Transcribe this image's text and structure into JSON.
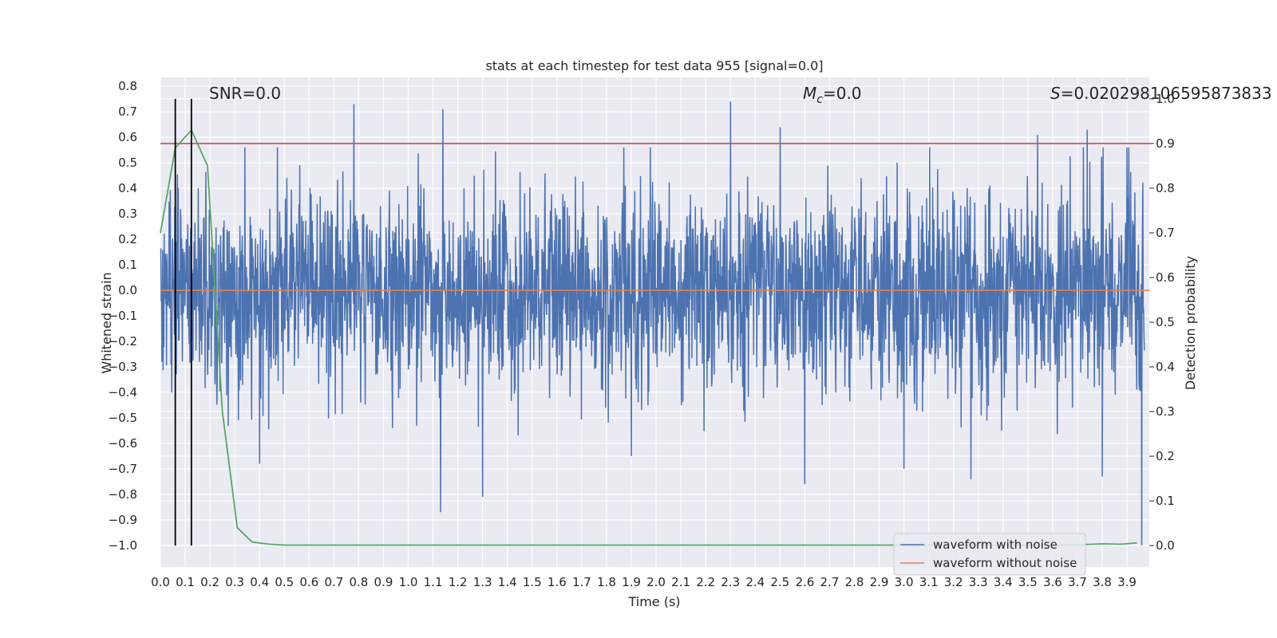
{
  "chart_data": {
    "type": "line",
    "title": "stats at each timestep for test data 955 [signal=0.0]",
    "xlabel": "Time (s)",
    "ylabel": "Whitened strain",
    "y2label": "Detection probability",
    "xlim": [
      0.0,
      3.99
    ],
    "ylim": [
      -1.085,
      0.835
    ],
    "y2lim": [
      -0.048,
      1.048
    ],
    "x_ticks": [
      0.0,
      0.1,
      0.2,
      0.3,
      0.4,
      0.5,
      0.6,
      0.7,
      0.8,
      0.9,
      1.0,
      1.1,
      1.2,
      1.3,
      1.4,
      1.5,
      1.6,
      1.7,
      1.8,
      1.9,
      2.0,
      2.1,
      2.2,
      2.3,
      2.4,
      2.5,
      2.6,
      2.7,
      2.8,
      2.9,
      3.0,
      3.1,
      3.2,
      3.3,
      3.4,
      3.5,
      3.6,
      3.7,
      3.8,
      3.9
    ],
    "x_tick_labels": [
      "0.0",
      "0.1",
      "0.2",
      "0.3",
      "0.4",
      "0.5",
      "0.6",
      "0.7",
      "0.8",
      "0.9",
      "1.0",
      "1.1",
      "1.2",
      "1.3",
      "1.4",
      "1.5",
      "1.6",
      "1.7",
      "1.8",
      "1.9",
      "2.0",
      "2.1",
      "2.2",
      "2.3",
      "2.4",
      "2.5",
      "2.6",
      "2.7",
      "2.8",
      "2.9",
      "3.0",
      "3.1",
      "3.2",
      "3.3",
      "3.4",
      "3.5",
      "3.6",
      "3.7",
      "3.8",
      "3.9"
    ],
    "y_ticks": [
      0.8,
      0.7,
      0.6,
      0.5,
      0.4,
      0.3,
      0.2,
      0.1,
      0.0,
      -0.1,
      -0.2,
      -0.3,
      -0.4,
      -0.5,
      -0.6,
      -0.7,
      -0.8,
      -0.9,
      -1.0
    ],
    "y_tick_labels": [
      "0.8",
      "0.7",
      "0.6",
      "0.5",
      "0.4",
      "0.3",
      "0.2",
      "0.1",
      "0.0",
      "−0.1",
      "−0.2",
      "−0.3",
      "−0.4",
      "−0.5",
      "−0.6",
      "−0.7",
      "−0.8",
      "−0.9",
      "−1.0"
    ],
    "y2_ticks": [
      1.0,
      0.9,
      0.8,
      0.7,
      0.6,
      0.5,
      0.4,
      0.3,
      0.2,
      0.1,
      0.0
    ],
    "y2_tick_labels": [
      "1.0",
      "0.9",
      "0.8",
      "0.7",
      "0.6",
      "0.5",
      "0.4",
      "0.3",
      "0.2",
      "0.1",
      "0.0"
    ],
    "grid": true,
    "background": "#eaeaf2",
    "annotations": {
      "snr": "SNR=0.0",
      "mc_symbol": "M",
      "mc_subscript": "c",
      "mc_value": "=0.0",
      "s_symbol": "S",
      "s_value": "=0.020298106595873833"
    },
    "vertical_lines": {
      "color": "#000000",
      "x": [
        0.06,
        0.125
      ]
    },
    "threshold_line": {
      "color": "#c44e52",
      "y2": 0.9
    },
    "series": [
      {
        "name": "waveform with noise",
        "color": "#4c72b0",
        "axis": "left",
        "peaks": [
          {
            "x": 0.78,
            "y": 0.73
          },
          {
            "x": 1.14,
            "y": 0.71
          },
          {
            "x": 2.3,
            "y": 0.74
          },
          {
            "x": 3.74,
            "y": 0.63
          },
          {
            "x": 3.54,
            "y": 0.61
          },
          {
            "x": 2.5,
            "y": 0.64
          },
          {
            "x": 1.13,
            "y": -0.87
          },
          {
            "x": 1.3,
            "y": -0.81
          },
          {
            "x": 2.6,
            "y": -0.76
          },
          {
            "x": 3.27,
            "y": -0.74
          },
          {
            "x": 3.8,
            "y": -0.73
          },
          {
            "x": 3.0,
            "y": -0.7
          },
          {
            "x": 0.4,
            "y": -0.68
          },
          {
            "x": 1.9,
            "y": -0.65
          },
          {
            "x": 3.96,
            "y": -1.0
          }
        ]
      },
      {
        "name": "waveform without noise",
        "color": "#dd8452",
        "axis": "left",
        "x": [
          0.0,
          3.99
        ],
        "y": [
          0.0,
          0.0
        ]
      },
      {
        "color": "#55a868",
        "axis": "right",
        "x": [
          0.0,
          0.06,
          0.125,
          0.19,
          0.25,
          0.31,
          0.37,
          0.44,
          0.5,
          0.75,
          1.0,
          1.5,
          2.0,
          2.5,
          3.0,
          3.5,
          3.7,
          3.8,
          3.88,
          3.94
        ],
        "y": [
          0.7,
          0.89,
          0.93,
          0.85,
          0.3,
          0.04,
          0.008,
          0.003,
          0.001,
          0.001,
          0.001,
          0.001,
          0.001,
          0.001,
          0.001,
          0.001,
          0.0015,
          0.004,
          0.003,
          0.006
        ]
      }
    ],
    "legend": {
      "placement": "lower-right",
      "entries": [
        "waveform with noise",
        "waveform without noise"
      ]
    }
  }
}
